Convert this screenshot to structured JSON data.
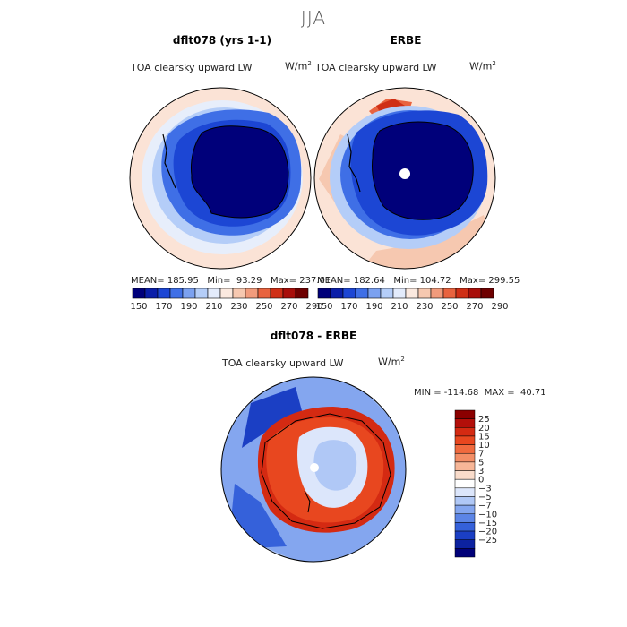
{
  "title": "JJA",
  "panels": [
    {
      "title": "dflt078 (yrs 1-1)",
      "variable": "TOA clearsky upward LW",
      "units": "W/m",
      "units_sup": "2",
      "stats": "MEAN= 185.95   Min=  93.29   Max= 237.01",
      "colorbar_ticks": [
        "150",
        "170",
        "190",
        "210",
        "230",
        "250",
        "270",
        "290"
      ]
    },
    {
      "title": "ERBE",
      "variable": "TOA clearsky upward LW",
      "units": "W/m",
      "units_sup": "2",
      "stats": "MEAN= 182.64   Min= 104.72   Max= 299.55",
      "colorbar_ticks": [
        "150",
        "170",
        "190",
        "210",
        "230",
        "250",
        "270",
        "290"
      ]
    }
  ],
  "diff_panel": {
    "title": "dflt078 - ERBE",
    "variable": "TOA clearsky upward LW",
    "units": "W/m",
    "units_sup": "2",
    "minmax": "MIN = -114.68  MAX =  40.71",
    "colorbar_labels": [
      "25",
      "20",
      "15",
      "10",
      "7",
      "5",
      "3",
      "0",
      "−3",
      "−5",
      "−7",
      "−10",
      "−15",
      "−20",
      "−25"
    ]
  },
  "chart_data": [
    {
      "type": "heatmap",
      "title": "dflt078 (yrs 1-1)",
      "projection": "south polar stereographic",
      "variable": "TOA clearsky upward LW",
      "units": "W/m2",
      "mean": 185.95,
      "min": 93.29,
      "max": 237.01,
      "color_levels": [
        150,
        170,
        190,
        210,
        230,
        250,
        270,
        290
      ],
      "colors": [
        "#00007a",
        "#0a1ea8",
        "#1c46d4",
        "#3f6fe6",
        "#7ba1f0",
        "#b4cdf8",
        "#e3ebfb",
        "#fbe9df",
        "#f6c8b0",
        "#f19b7c",
        "#e8633f",
        "#cf2f16",
        "#a80e0a",
        "#6e0000"
      ]
    },
    {
      "type": "heatmap",
      "title": "ERBE",
      "projection": "south polar stereographic",
      "variable": "TOA clearsky upward LW",
      "units": "W/m2",
      "mean": 182.64,
      "min": 104.72,
      "max": 299.55,
      "color_levels": [
        150,
        170,
        190,
        210,
        230,
        250,
        270,
        290
      ],
      "colors": [
        "#00007a",
        "#0a1ea8",
        "#1c46d4",
        "#3f6fe6",
        "#7ba1f0",
        "#b4cdf8",
        "#e3ebfb",
        "#fbe9df",
        "#f6c8b0",
        "#f19b7c",
        "#e8633f",
        "#cf2f16",
        "#a80e0a",
        "#6e0000"
      ]
    },
    {
      "type": "heatmap",
      "title": "dflt078 - ERBE",
      "projection": "south polar stereographic",
      "variable": "TOA clearsky upward LW",
      "units": "W/m2",
      "min": -114.68,
      "max": 40.71,
      "color_levels": [
        25,
        20,
        15,
        10,
        7,
        5,
        3,
        0,
        -3,
        -5,
        -7,
        -10,
        -15,
        -20,
        -25
      ],
      "colors": [
        "#8b0000",
        "#b30f0a",
        "#d42a12",
        "#e8471f",
        "#f06a3e",
        "#f38e66",
        "#f7b697",
        "#f9dccb",
        "#ffffff",
        "#dce6fb",
        "#b0c8f6",
        "#84a6ef",
        "#5c85e6",
        "#3561da",
        "#1b3fc4",
        "#0c22a0",
        "#000078"
      ]
    }
  ]
}
